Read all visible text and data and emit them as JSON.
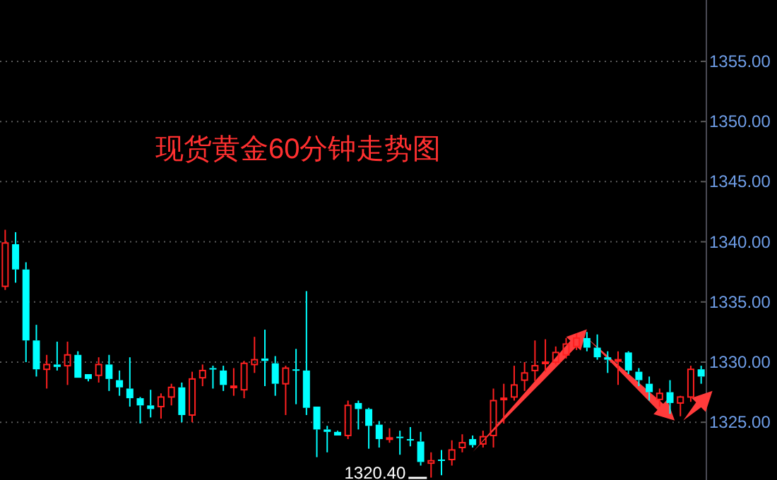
{
  "chart_data": {
    "type": "candlestick",
    "title": "现货黄金60分钟走势图",
    "categories": [
      null,
      null,
      null,
      null,
      null,
      null,
      null,
      null,
      null,
      null,
      null,
      null,
      null,
      null,
      null,
      null,
      null,
      null,
      null,
      null,
      null,
      null,
      null,
      null,
      null,
      null,
      null,
      null,
      null,
      null,
      null,
      null,
      null,
      null,
      null,
      null,
      null,
      null,
      null,
      null,
      null,
      null,
      null,
      null,
      null,
      null,
      null,
      null,
      null,
      null,
      null,
      null,
      null,
      null,
      null,
      null,
      null,
      null,
      null,
      null,
      null,
      null,
      null,
      null,
      null,
      null,
      null,
      null
    ],
    "ohlc": [
      [
        1336.3,
        1341.0,
        1336.0,
        1339.9
      ],
      [
        1339.8,
        1340.8,
        1336.6,
        1337.7
      ],
      [
        1337.7,
        1338.3,
        1330.0,
        1331.8
      ],
      [
        1331.8,
        1333.1,
        1328.8,
        1329.4
      ],
      [
        1329.4,
        1330.6,
        1327.8,
        1329.8
      ],
      [
        1329.8,
        1331.7,
        1329.3,
        1329.6
      ],
      [
        1329.7,
        1331.7,
        1328.1,
        1330.6
      ],
      [
        1330.6,
        1330.9,
        1328.7,
        1328.7
      ],
      [
        1329.0,
        1329.0,
        1328.4,
        1328.6
      ],
      [
        1328.9,
        1330.4,
        1328.3,
        1329.8
      ],
      [
        1329.8,
        1330.6,
        1327.6,
        1328.6
      ],
      [
        1328.5,
        1329.3,
        1327.2,
        1327.9
      ],
      [
        1327.8,
        1330.4,
        1326.3,
        1327.0
      ],
      [
        1327.0,
        1327.1,
        1324.9,
        1326.4
      ],
      [
        1326.4,
        1327.7,
        1325.4,
        1326.1
      ],
      [
        1326.3,
        1327.4,
        1325.3,
        1327.1
      ],
      [
        1327.1,
        1328.2,
        1326.4,
        1327.9
      ],
      [
        1327.9,
        1328.3,
        1325.0,
        1325.6
      ],
      [
        1325.6,
        1329.2,
        1325.0,
        1328.6
      ],
      [
        1328.7,
        1329.8,
        1328.0,
        1329.3
      ],
      [
        1329.5,
        1329.7,
        1327.8,
        1329.4
      ],
      [
        1329.3,
        1329.7,
        1327.6,
        1328.1
      ],
      [
        1327.9,
        1329.5,
        1327.2,
        1328.0
      ],
      [
        1327.7,
        1330.1,
        1327.0,
        1329.9
      ],
      [
        1329.8,
        1332.1,
        1329.1,
        1330.2
      ],
      [
        1330.3,
        1332.7,
        1328.0,
        1330.1
      ],
      [
        1329.9,
        1330.5,
        1327.2,
        1328.2
      ],
      [
        1328.2,
        1329.7,
        1325.6,
        1329.5
      ],
      [
        1329.4,
        1331.1,
        1326.5,
        1329.3
      ],
      [
        1329.3,
        1335.9,
        1325.6,
        1326.2
      ],
      [
        1326.3,
        1326.3,
        1322.1,
        1324.4
      ],
      [
        1324.4,
        1324.7,
        1322.5,
        1324.2
      ],
      [
        1324.2,
        1324.3,
        1323.9,
        1323.9
      ],
      [
        1323.9,
        1326.8,
        1323.6,
        1326.4
      ],
      [
        1326.6,
        1326.8,
        1324.4,
        1326.1
      ],
      [
        1326.1,
        1326.2,
        1322.8,
        1324.7
      ],
      [
        1324.8,
        1325.1,
        1322.9,
        1323.6
      ],
      [
        1323.6,
        1324.5,
        1323.3,
        1323.7
      ],
      [
        1323.8,
        1324.3,
        1322.3,
        1323.7
      ],
      [
        1323.6,
        1324.6,
        1323.0,
        1323.5
      ],
      [
        1323.4,
        1324.2,
        1321.4,
        1321.7
      ],
      [
        1321.6,
        1322.5,
        1320.4,
        1321.8
      ],
      [
        1321.9,
        1322.7,
        1320.6,
        1321.8
      ],
      [
        1321.9,
        1323.5,
        1321.4,
        1322.7
      ],
      [
        1322.9,
        1324.0,
        1322.5,
        1323.3
      ],
      [
        1323.6,
        1323.9,
        1322.9,
        1323.1
      ],
      [
        1323.2,
        1324.3,
        1322.9,
        1323.8
      ],
      [
        1323.9,
        1327.8,
        1322.9,
        1326.8
      ],
      [
        1326.9,
        1328.2,
        1324.9,
        1327.0
      ],
      [
        1327.1,
        1329.7,
        1326.8,
        1328.1
      ],
      [
        1328.5,
        1330.0,
        1327.6,
        1329.1
      ],
      [
        1329.3,
        1331.8,
        1328.4,
        1329.7
      ],
      [
        1329.9,
        1331.9,
        1329.2,
        1330.0
      ],
      [
        1330.0,
        1331.3,
        1329.8,
        1330.8
      ],
      [
        1330.6,
        1332.0,
        1330.3,
        1331.5
      ],
      [
        1331.3,
        1332.4,
        1331.0,
        1332.0
      ],
      [
        1332.0,
        1332.5,
        1330.9,
        1331.2
      ],
      [
        1331.2,
        1332.3,
        1330.2,
        1330.4
      ],
      [
        1330.4,
        1330.9,
        1329.1,
        1330.2
      ],
      [
        1330.1,
        1330.9,
        1328.1,
        1330.2
      ],
      [
        1330.8,
        1330.9,
        1329.0,
        1329.3
      ],
      [
        1329.2,
        1329.5,
        1328.0,
        1328.5
      ],
      [
        1328.2,
        1328.8,
        1326.8,
        1327.5
      ],
      [
        1326.9,
        1327.8,
        1326.3,
        1327.4
      ],
      [
        1327.5,
        1328.5,
        1325.7,
        1326.6
      ],
      [
        1326.6,
        1327.2,
        1325.5,
        1327.1
      ],
      [
        1327.1,
        1329.7,
        1326.7,
        1329.4
      ],
      [
        1329.4,
        1329.7,
        1328.2,
        1328.8
      ]
    ],
    "ylim": [
      1320.2,
      1360.1
    ],
    "yticks": [
      {
        "value": 1325,
        "label": "1325.00"
      },
      {
        "value": 1330,
        "label": "1330.00"
      },
      {
        "value": 1335,
        "label": "1335.00"
      },
      {
        "value": 1340,
        "label": "1340.00"
      },
      {
        "value": 1345,
        "label": "1345.00"
      },
      {
        "value": 1350,
        "label": "1350.00"
      },
      {
        "value": 1355,
        "label": "1355.00"
      }
    ],
    "grid": "y",
    "annotations": [
      "1320.40"
    ]
  }
}
